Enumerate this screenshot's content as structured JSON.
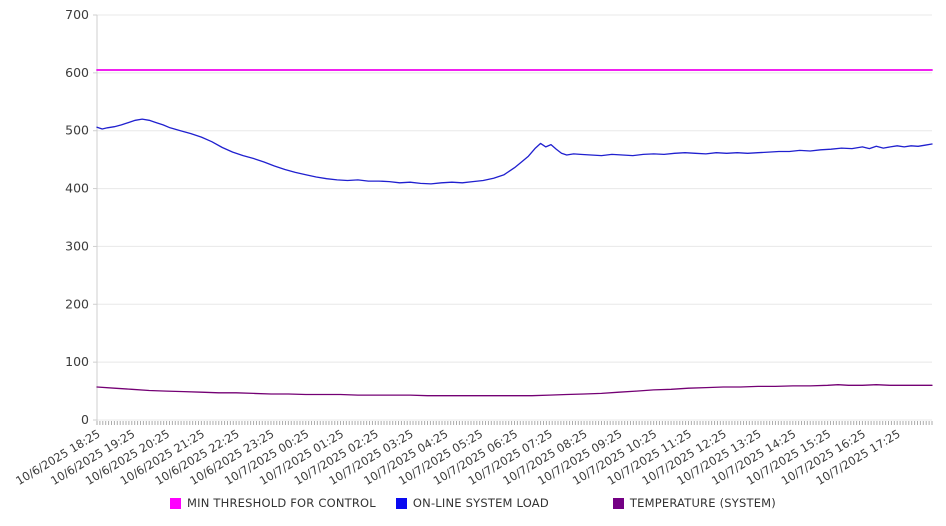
{
  "chart_data": {
    "type": "line",
    "title": "",
    "xlabel": "",
    "ylabel": "",
    "grid": true,
    "legend_position": "bottom",
    "ylim": [
      0,
      700
    ],
    "xlim_hours": [
      0,
      24
    ],
    "y_ticks": [
      0,
      100,
      200,
      300,
      400,
      500,
      600,
      700
    ],
    "minor_ticks_per_hour": 12,
    "x_tick_hours": [
      0,
      1,
      2,
      3,
      4,
      5,
      6,
      7,
      8,
      9,
      10,
      11,
      12,
      13,
      14,
      15,
      16,
      17,
      18,
      19,
      20,
      21,
      22,
      23
    ],
    "x_tick_labels": [
      "10/6/2025 18:25",
      "10/6/2025 19:25",
      "10/6/2025 20:25",
      "10/6/2025 21:25",
      "10/6/2025 22:25",
      "10/6/2025 23:25",
      "10/7/2025 00:25",
      "10/7/2025 01:25",
      "10/7/2025 02:25",
      "10/7/2025 03:25",
      "10/7/2025 04:25",
      "10/7/2025 05:25",
      "10/7/2025 06:25",
      "10/7/2025 07:25",
      "10/7/2025 08:25",
      "10/7/2025 09:25",
      "10/7/2025 10:25",
      "10/7/2025 11:25",
      "10/7/2025 12:25",
      "10/7/2025 13:25",
      "10/7/2025 14:25",
      "10/7/2025 15:25",
      "10/7/2025 16:25",
      "10/7/2025 17:25"
    ],
    "series": [
      {
        "name": "MIN THRESHOLD FOR CONTROL",
        "color": "#ee00ee",
        "stroke_width": 1.8,
        "points": [
          [
            0,
            605
          ],
          [
            24,
            605
          ]
        ]
      },
      {
        "name": "ON-LINE SYSTEM LOAD",
        "color": "#2020cf",
        "stroke_width": 1.3,
        "points": [
          [
            0,
            506
          ],
          [
            0.15,
            503
          ],
          [
            0.3,
            505
          ],
          [
            0.5,
            507
          ],
          [
            0.7,
            510
          ],
          [
            0.9,
            514
          ],
          [
            1.1,
            518
          ],
          [
            1.3,
            520
          ],
          [
            1.5,
            518
          ],
          [
            1.7,
            514
          ],
          [
            1.9,
            510
          ],
          [
            2.1,
            505
          ],
          [
            2.4,
            500
          ],
          [
            2.7,
            495
          ],
          [
            3.0,
            489
          ],
          [
            3.3,
            481
          ],
          [
            3.6,
            471
          ],
          [
            3.9,
            463
          ],
          [
            4.2,
            457
          ],
          [
            4.5,
            452
          ],
          [
            4.8,
            446
          ],
          [
            5.1,
            439
          ],
          [
            5.4,
            433
          ],
          [
            5.7,
            428
          ],
          [
            6.0,
            424
          ],
          [
            6.3,
            420
          ],
          [
            6.6,
            417
          ],
          [
            6.9,
            415
          ],
          [
            7.2,
            414
          ],
          [
            7.5,
            415
          ],
          [
            7.8,
            413
          ],
          [
            8.1,
            413
          ],
          [
            8.4,
            412
          ],
          [
            8.7,
            410
          ],
          [
            9.0,
            411
          ],
          [
            9.3,
            409
          ],
          [
            9.6,
            408
          ],
          [
            9.9,
            410
          ],
          [
            10.2,
            411
          ],
          [
            10.5,
            410
          ],
          [
            10.8,
            412
          ],
          [
            11.1,
            414
          ],
          [
            11.4,
            418
          ],
          [
            11.7,
            424
          ],
          [
            12.0,
            436
          ],
          [
            12.2,
            446
          ],
          [
            12.4,
            456
          ],
          [
            12.6,
            470
          ],
          [
            12.75,
            478
          ],
          [
            12.9,
            472
          ],
          [
            13.05,
            476
          ],
          [
            13.2,
            468
          ],
          [
            13.35,
            461
          ],
          [
            13.5,
            458
          ],
          [
            13.7,
            460
          ],
          [
            13.9,
            459
          ],
          [
            14.2,
            458
          ],
          [
            14.5,
            457
          ],
          [
            14.8,
            459
          ],
          [
            15.1,
            458
          ],
          [
            15.4,
            457
          ],
          [
            15.7,
            459
          ],
          [
            16.0,
            460
          ],
          [
            16.3,
            459
          ],
          [
            16.6,
            461
          ],
          [
            16.9,
            462
          ],
          [
            17.2,
            461
          ],
          [
            17.5,
            460
          ],
          [
            17.8,
            462
          ],
          [
            18.1,
            461
          ],
          [
            18.4,
            462
          ],
          [
            18.7,
            461
          ],
          [
            19.0,
            462
          ],
          [
            19.3,
            463
          ],
          [
            19.6,
            464
          ],
          [
            19.9,
            464
          ],
          [
            20.2,
            466
          ],
          [
            20.5,
            465
          ],
          [
            20.8,
            467
          ],
          [
            21.1,
            468
          ],
          [
            21.4,
            470
          ],
          [
            21.7,
            469
          ],
          [
            22.0,
            472
          ],
          [
            22.2,
            469
          ],
          [
            22.4,
            473
          ],
          [
            22.6,
            470
          ],
          [
            22.8,
            472
          ],
          [
            23.0,
            474
          ],
          [
            23.2,
            472
          ],
          [
            23.4,
            474
          ],
          [
            23.6,
            473
          ],
          [
            23.8,
            475
          ],
          [
            24.0,
            477
          ]
        ]
      },
      {
        "name": "TEMPERATURE (SYSTEM)",
        "color": "#740074",
        "stroke_width": 1.3,
        "points": [
          [
            0,
            57
          ],
          [
            0.5,
            55
          ],
          [
            1,
            53
          ],
          [
            1.5,
            51
          ],
          [
            2,
            50
          ],
          [
            2.5,
            49
          ],
          [
            3,
            48
          ],
          [
            3.5,
            47
          ],
          [
            4,
            47
          ],
          [
            4.5,
            46
          ],
          [
            5,
            45
          ],
          [
            5.5,
            45
          ],
          [
            6,
            44
          ],
          [
            6.5,
            44
          ],
          [
            7,
            44
          ],
          [
            7.5,
            43
          ],
          [
            8,
            43
          ],
          [
            8.5,
            43
          ],
          [
            9,
            43
          ],
          [
            9.5,
            42
          ],
          [
            10,
            42
          ],
          [
            10.5,
            42
          ],
          [
            11,
            42
          ],
          [
            11.5,
            42
          ],
          [
            12,
            42
          ],
          [
            12.5,
            42
          ],
          [
            13,
            43
          ],
          [
            13.5,
            44
          ],
          [
            14,
            45
          ],
          [
            14.5,
            46
          ],
          [
            15,
            48
          ],
          [
            15.5,
            50
          ],
          [
            16,
            52
          ],
          [
            16.5,
            53
          ],
          [
            17,
            55
          ],
          [
            17.5,
            56
          ],
          [
            18,
            57
          ],
          [
            18.5,
            57
          ],
          [
            19,
            58
          ],
          [
            19.5,
            58
          ],
          [
            20,
            59
          ],
          [
            20.5,
            59
          ],
          [
            21,
            60
          ],
          [
            21.3,
            61
          ],
          [
            21.6,
            60
          ],
          [
            22,
            60
          ],
          [
            22.4,
            61
          ],
          [
            22.8,
            60
          ],
          [
            23.2,
            60
          ],
          [
            23.6,
            60
          ],
          [
            24,
            60
          ]
        ]
      }
    ]
  },
  "legend": {
    "items": [
      {
        "label": "MIN THRESHOLD FOR CONTROL",
        "color": "#ff00ff"
      },
      {
        "label": "ON-LINE SYSTEM LOAD",
        "color": "#0a0af0"
      },
      {
        "label": "TEMPERATURE (SYSTEM)",
        "color": "#740084"
      }
    ]
  },
  "style_colors": {
    "gridline": "#e8e8e8",
    "axis_line": "#cfcfcf",
    "minor_tick": "#ababab",
    "tick_text": "#3c3c3c"
  }
}
